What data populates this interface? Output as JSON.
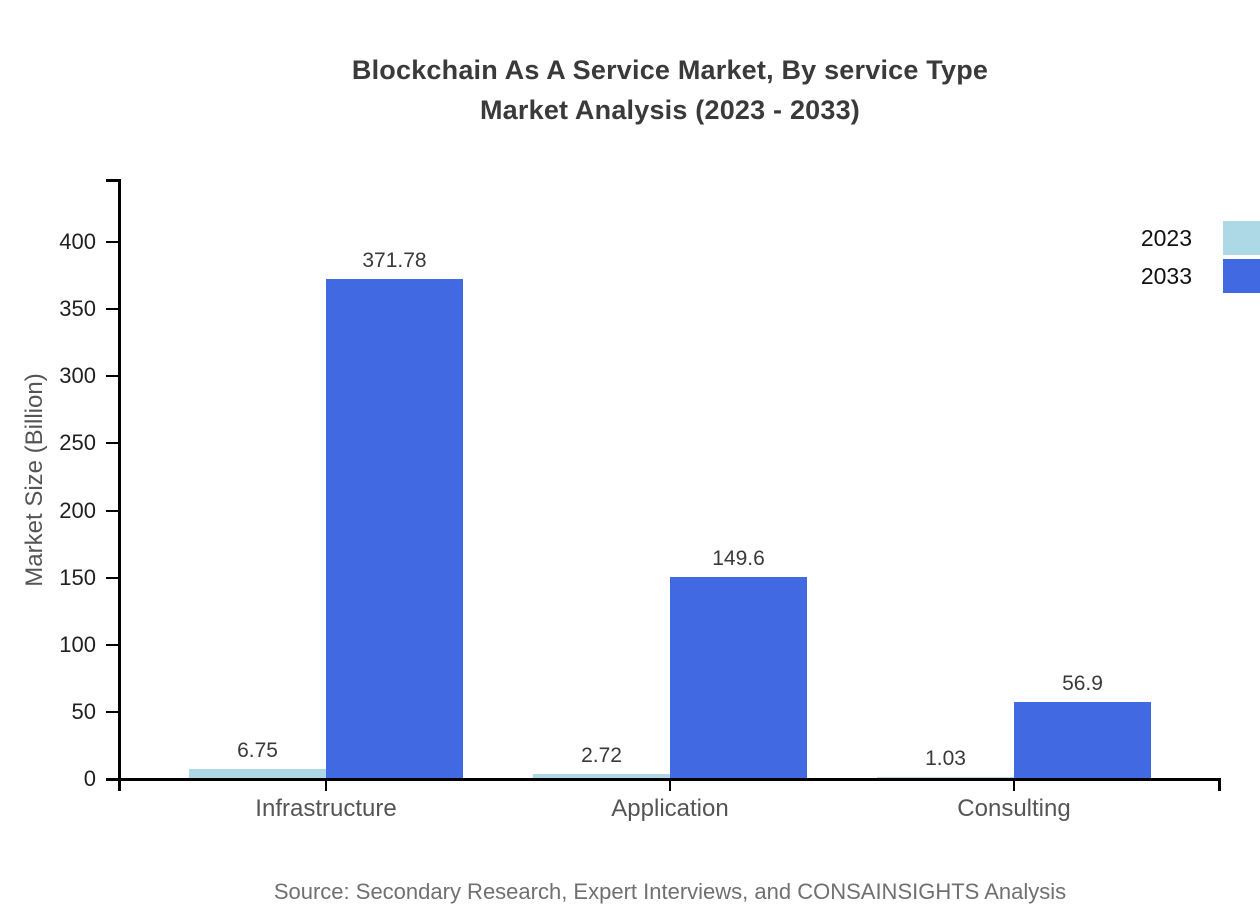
{
  "title": {
    "line1": "Blockchain As A Service Market, By service Type",
    "line2": "Market Analysis (2023 - 2033)"
  },
  "source": "Source: Secondary Research, Expert Interviews, and CONSAINSIGHTS Analysis",
  "chart_data": {
    "type": "bar",
    "title": "Blockchain As A Service Market, By service Type Market Analysis (2023 - 2033)",
    "categories": [
      "Infrastructure",
      "Application",
      "Consulting"
    ],
    "series": [
      {
        "name": "2023",
        "color": "#ADD8E6",
        "values": [
          6.75,
          2.72,
          1.03
        ]
      },
      {
        "name": "2033",
        "color": "#4169E1",
        "values": [
          371.78,
          149.6,
          56.9
        ]
      }
    ],
    "xlabel": "",
    "ylabel": "Market Size (Billion)",
    "yticks": [
      0,
      50,
      100,
      150,
      200,
      250,
      300,
      350,
      400
    ],
    "ylim": [
      0,
      447
    ],
    "grid": false,
    "legend_position": "top-right",
    "value_labels_shown": true,
    "axis_color": "#000000"
  }
}
